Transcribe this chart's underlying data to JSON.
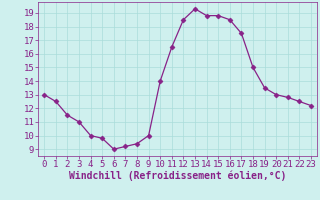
{
  "x": [
    0,
    1,
    2,
    3,
    4,
    5,
    6,
    7,
    8,
    9,
    10,
    11,
    12,
    13,
    14,
    15,
    16,
    17,
    18,
    19,
    20,
    21,
    22,
    23
  ],
  "y": [
    13,
    12.5,
    11.5,
    11,
    10,
    9.8,
    9,
    9.2,
    9.4,
    10,
    14,
    16.5,
    18.5,
    19.3,
    18.8,
    18.8,
    18.5,
    17.5,
    15,
    13.5,
    13,
    12.8,
    12.5,
    12.2
  ],
  "line_color": "#882288",
  "marker": "D",
  "marker_size": 2.5,
  "bg_color": "#cff0ee",
  "grid_color": "#aaddda",
  "xlabel": "Windchill (Refroidissement éolien,°C)",
  "xlabel_color": "#882288",
  "xlabel_fontsize": 7.0,
  "tick_color": "#882288",
  "tick_fontsize": 6.5,
  "ylim": [
    8.5,
    19.8
  ],
  "xlim": [
    -0.5,
    23.5
  ],
  "yticks": [
    9,
    10,
    11,
    12,
    13,
    14,
    15,
    16,
    17,
    18,
    19
  ],
  "xticks": [
    0,
    1,
    2,
    3,
    4,
    5,
    6,
    7,
    8,
    9,
    10,
    11,
    12,
    13,
    14,
    15,
    16,
    17,
    18,
    19,
    20,
    21,
    22,
    23
  ]
}
